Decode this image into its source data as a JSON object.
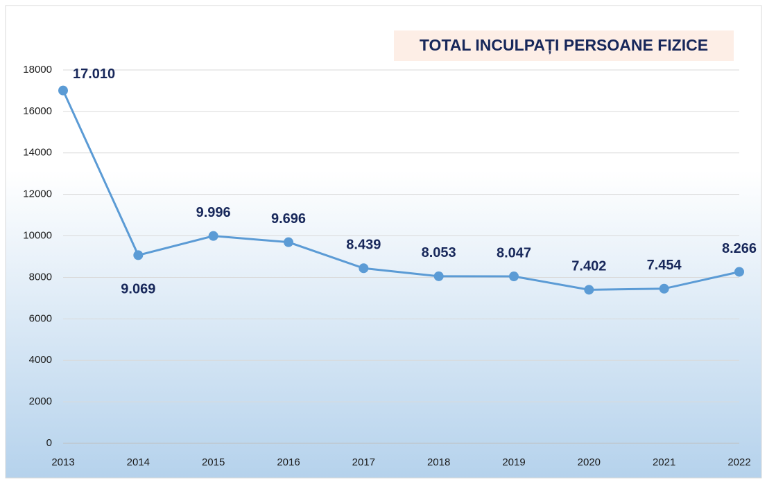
{
  "chart_data": {
    "type": "line",
    "title": "TOTAL INCULPAȚI PERSOANE FIZICE",
    "categories": [
      "2013",
      "2014",
      "2015",
      "2016",
      "2017",
      "2018",
      "2019",
      "2020",
      "2021",
      "2022"
    ],
    "series": [
      {
        "name": "TOTAL INCULPAȚI PERSOANE FIZICE",
        "color": "#5b9bd5",
        "values": [
          17010,
          9069,
          9996,
          9696,
          8439,
          8053,
          8047,
          7402,
          7454,
          8266
        ],
        "value_labels": [
          "17.010",
          "9.069",
          "9.996",
          "9.696",
          "8.439",
          "8.053",
          "8.047",
          "7.402",
          "7.454",
          "8.266"
        ]
      }
    ],
    "ylim": [
      0,
      18000
    ],
    "yticks": [
      0,
      2000,
      4000,
      6000,
      8000,
      10000,
      12000,
      14000,
      16000,
      18000
    ],
    "grid": true
  }
}
